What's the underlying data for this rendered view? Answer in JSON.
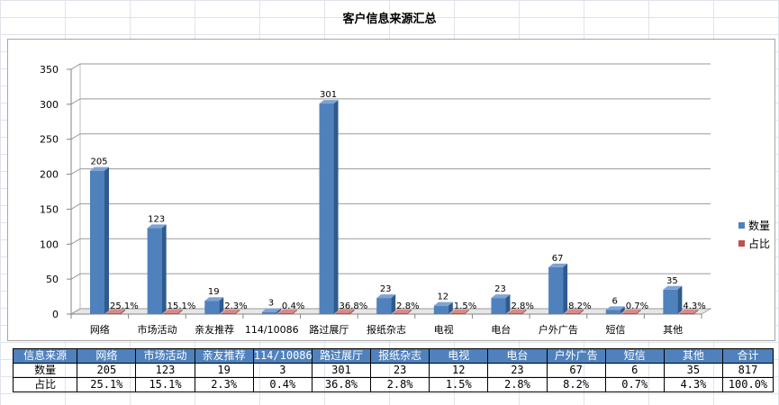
{
  "chart_data": {
    "type": "bar",
    "title": "客户信息来源汇总",
    "categories": [
      "网络",
      "市场活动",
      "亲友推荐",
      "114/10086",
      "路过展厅",
      "报纸杂志",
      "电视",
      "电台",
      "户外广告",
      "短信",
      "其他"
    ],
    "series": [
      {
        "name": "数量",
        "color": "#4f81bd",
        "values": [
          205,
          123,
          19,
          3,
          301,
          23,
          12,
          23,
          67,
          6,
          35
        ]
      },
      {
        "name": "占比",
        "color": "#c0504d",
        "values": [
          0.251,
          0.151,
          0.023,
          0.004,
          0.368,
          0.028,
          0.015,
          0.028,
          0.082,
          0.007,
          0.043
        ]
      }
    ],
    "data_labels_count": [
      "205",
      "123",
      "19",
      "3",
      "301",
      "23",
      "12",
      "23",
      "67",
      "6",
      "35"
    ],
    "data_labels_pct": [
      "25.1%",
      "15.1%",
      "2.3%",
      "0.4%",
      "36.8%",
      "2.8%",
      "1.5%",
      "2.8%",
      "8.2%",
      "0.7%",
      "4.3%"
    ],
    "ylim": [
      0,
      350
    ],
    "yticks": [
      0,
      50,
      100,
      150,
      200,
      250,
      300,
      350
    ],
    "grid": true,
    "legend": "right"
  },
  "table": {
    "header_label": "信息来源",
    "headers": [
      "网络",
      "市场活动",
      "亲友推荐",
      "114/10086",
      "路过展厅",
      "报纸杂志",
      "电视",
      "电台",
      "户外广告",
      "短信",
      "其他",
      "合计"
    ],
    "count_label": "数量",
    "counts": [
      "205",
      "123",
      "19",
      "3",
      "301",
      "23",
      "12",
      "23",
      "67",
      "6",
      "35",
      "817"
    ],
    "pct_label": "占比",
    "pcts": [
      "25.1%",
      "15.1%",
      "2.3%",
      "0.4%",
      "36.8%",
      "2.8%",
      "1.5%",
      "2.8%",
      "8.2%",
      "0.7%",
      "4.3%",
      "100.0%"
    ]
  }
}
